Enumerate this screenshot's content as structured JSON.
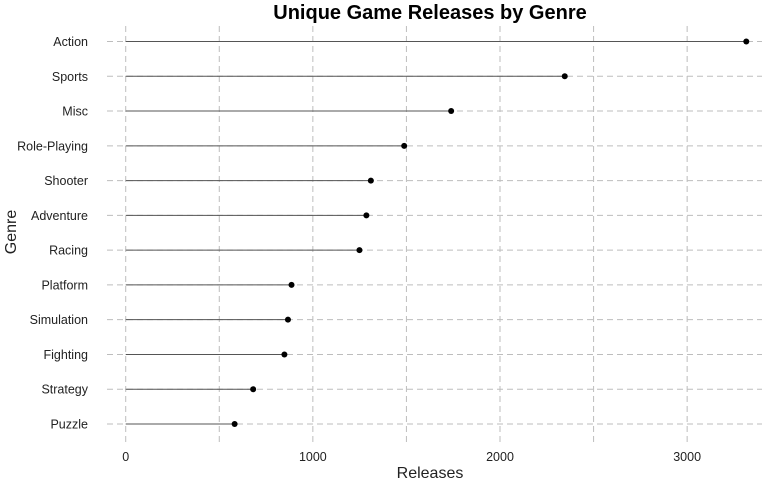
{
  "chart_data": {
    "type": "lollipop",
    "title": "Unique Game Releases by Genre",
    "xlabel": "Releases",
    "ylabel": "Genre",
    "xlim": [
      -100,
      3400
    ],
    "xticks": [
      0,
      1000,
      2000,
      3000
    ],
    "grid": true,
    "categories": [
      "Action",
      "Sports",
      "Misc",
      "Role-Playing",
      "Shooter",
      "Adventure",
      "Racing",
      "Platform",
      "Simulation",
      "Fighting",
      "Strategy",
      "Puzzle"
    ],
    "values": [
      3316,
      2346,
      1739,
      1488,
      1310,
      1286,
      1249,
      886,
      867,
      848,
      681,
      582
    ]
  }
}
